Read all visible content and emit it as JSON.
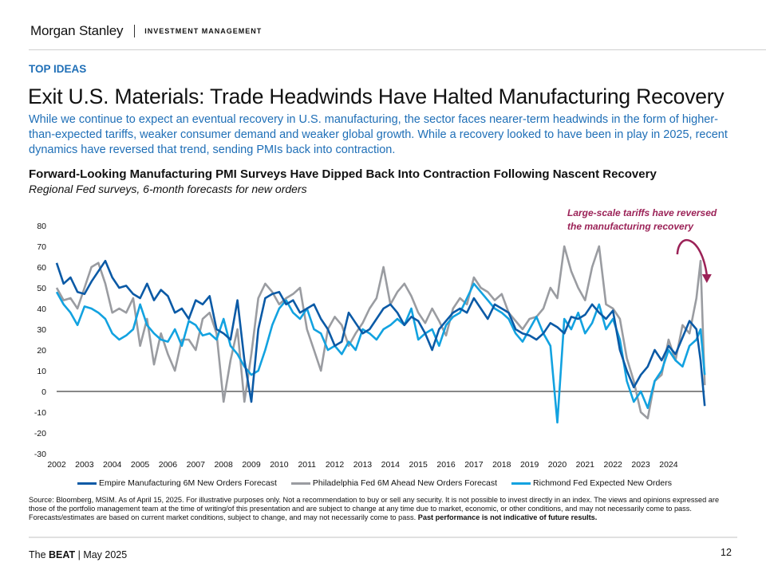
{
  "header": {
    "brand": "Morgan Stanley",
    "brand_sub": "INVESTMENT MANAGEMENT"
  },
  "section_label": "TOP IDEAS",
  "title": "Exit U.S. Materials: Trade Headwinds Have Halted Manufacturing Recovery",
  "lede": "While we continue to expect an eventual recovery in U.S. manufacturing, the sector faces nearer-term headwinds in the form of higher-than-expected tariffs, weaker consumer demand and weaker global growth. While a recovery looked to have been in play in 2025, recent dynamics have reversed that trend, sending PMIs back into contraction.",
  "source": {
    "text": "Source: Bloomberg, MSIM. As of April 15, 2025. For illustrative purposes only. Not a recommendation to buy or sell any security. It is not possible to invest directly in an index. The views and opinions expressed are those of the portfolio management team at the time of writing/of this presentation and are subject to change at any time due to market, economic, or other conditions, and may not necessarily come to pass.  Forecasts/estimates are based on current market conditions, subject to change, and may not necessarily come to pass. ",
    "bold": "Past performance is not indicative of future results."
  },
  "footer": {
    "prefix": "The ",
    "bold": "BEAT",
    "suffix": " | May 2025",
    "page": "12"
  },
  "colors": {
    "accent_blue": "#1f6fb7",
    "annotation": "#9b2257",
    "empire": "#0b5aa6",
    "philly": "#9a9ca1",
    "richmond": "#12a2e0"
  },
  "chart_data": {
    "type": "line",
    "title": "Forward-Looking Manufacturing PMI Surveys Have Dipped Back Into Contraction Following Nascent Recovery",
    "subtitle": "Regional Fed surveys, 6-month forecasts for new orders",
    "xlabel": "",
    "ylabel": "",
    "xlim": [
      2002,
      2025.3
    ],
    "ylim": [
      -30,
      80
    ],
    "y_ticks": [
      80,
      70,
      60,
      50,
      40,
      30,
      20,
      10,
      0,
      -10,
      -20,
      -30
    ],
    "x_ticks": [
      "2002",
      "2003",
      "2004",
      "2005",
      "2006",
      "2007",
      "2008",
      "2009",
      "2010",
      "2011",
      "2012",
      "2013",
      "2014",
      "2015",
      "2016",
      "2017",
      "2018",
      "2019",
      "2020",
      "2021",
      "2022",
      "2023",
      "2024"
    ],
    "grid": false,
    "zero_line": true,
    "legend_position": "bottom",
    "annotation": {
      "line1": "Large-scale tariffs have reversed",
      "line2": "the manufacturing recovery",
      "x": 2024.6
    },
    "x": [
      2002.0,
      2002.25,
      2002.5,
      2002.75,
      2003.0,
      2003.25,
      2003.5,
      2003.75,
      2004.0,
      2004.25,
      2004.5,
      2004.75,
      2005.0,
      2005.25,
      2005.5,
      2005.75,
      2006.0,
      2006.25,
      2006.5,
      2006.75,
      2007.0,
      2007.25,
      2007.5,
      2007.75,
      2008.0,
      2008.25,
      2008.5,
      2008.75,
      2009.0,
      2009.25,
      2009.5,
      2009.75,
      2010.0,
      2010.25,
      2010.5,
      2010.75,
      2011.0,
      2011.25,
      2011.5,
      2011.75,
      2012.0,
      2012.25,
      2012.5,
      2012.75,
      2013.0,
      2013.25,
      2013.5,
      2013.75,
      2014.0,
      2014.25,
      2014.5,
      2014.75,
      2015.0,
      2015.25,
      2015.5,
      2015.75,
      2016.0,
      2016.25,
      2016.5,
      2016.75,
      2017.0,
      2017.25,
      2017.5,
      2017.75,
      2018.0,
      2018.25,
      2018.5,
      2018.75,
      2019.0,
      2019.25,
      2019.5,
      2019.75,
      2020.0,
      2020.25,
      2020.5,
      2020.75,
      2021.0,
      2021.25,
      2021.5,
      2021.75,
      2022.0,
      2022.25,
      2022.5,
      2022.75,
      2023.0,
      2023.25,
      2023.5,
      2023.75,
      2024.0,
      2024.25,
      2024.5,
      2024.75,
      2025.0,
      2025.15,
      2025.3
    ],
    "series": [
      {
        "name": "Empire Manufacturing 6M New Orders Forecast",
        "color_key": "empire",
        "values": [
          62,
          52,
          55,
          48,
          47,
          53,
          58,
          63,
          55,
          50,
          51,
          47,
          45,
          52,
          44,
          49,
          46,
          38,
          40,
          35,
          44,
          42,
          46,
          30,
          28,
          25,
          44,
          15,
          -5,
          30,
          45,
          47,
          48,
          42,
          44,
          38,
          40,
          42,
          35,
          30,
          22,
          24,
          38,
          33,
          28,
          30,
          35,
          40,
          42,
          38,
          32,
          36,
          34,
          28,
          20,
          30,
          34,
          38,
          40,
          38,
          45,
          40,
          35,
          42,
          40,
          38,
          30,
          28,
          27,
          25,
          28,
          33,
          31,
          28,
          36,
          35,
          37,
          42,
          38,
          35,
          39,
          20,
          10,
          2,
          8,
          12,
          20,
          15,
          22,
          18,
          26,
          34,
          30,
          15,
          -7
        ]
      },
      {
        "name": "Philadelphia Fed 6M Ahead New Orders Forecast",
        "color_key": "philly",
        "values": [
          50,
          44,
          45,
          40,
          50,
          60,
          62,
          52,
          38,
          40,
          38,
          45,
          22,
          35,
          13,
          28,
          18,
          10,
          25,
          25,
          20,
          35,
          38,
          28,
          -5,
          15,
          30,
          -5,
          18,
          45,
          52,
          48,
          42,
          45,
          47,
          50,
          30,
          20,
          10,
          30,
          36,
          32,
          22,
          28,
          33,
          40,
          45,
          60,
          42,
          48,
          52,
          46,
          38,
          33,
          40,
          34,
          27,
          40,
          45,
          42,
          55,
          50,
          48,
          44,
          47,
          38,
          34,
          30,
          35,
          36,
          40,
          50,
          45,
          70,
          58,
          50,
          44,
          60,
          70,
          42,
          40,
          35,
          16,
          5,
          -10,
          -13,
          5,
          8,
          25,
          15,
          32,
          28,
          45,
          63,
          3
        ]
      },
      {
        "name": "Richmond Fed Expected New Orders",
        "color_key": "richmond",
        "values": [
          48,
          42,
          38,
          32,
          41,
          40,
          38,
          35,
          28,
          25,
          27,
          30,
          42,
          32,
          28,
          25,
          24,
          30,
          22,
          34,
          32,
          27,
          28,
          25,
          35,
          22,
          18,
          12,
          8,
          10,
          20,
          32,
          40,
          44,
          38,
          35,
          40,
          30,
          28,
          20,
          22,
          18,
          24,
          20,
          30,
          28,
          25,
          30,
          32,
          35,
          32,
          40,
          25,
          28,
          30,
          22,
          32,
          36,
          38,
          45,
          52,
          48,
          44,
          40,
          38,
          35,
          28,
          24,
          30,
          36,
          28,
          22,
          -15,
          35,
          30,
          38,
          28,
          33,
          42,
          30,
          35,
          25,
          5,
          -5,
          0,
          -8,
          5,
          10,
          20,
          15,
          12,
          22,
          25,
          30,
          8
        ]
      }
    ]
  }
}
